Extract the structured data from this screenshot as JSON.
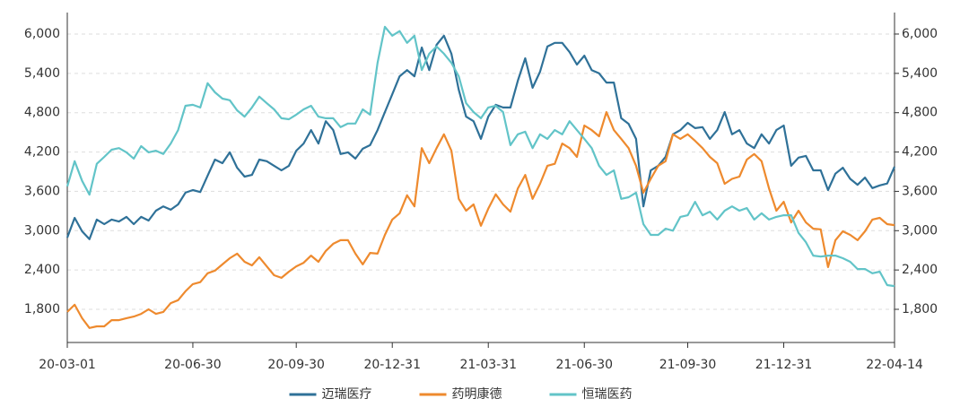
{
  "chart_data": {
    "type": "line",
    "categories": [
      "20-03-01",
      null,
      null,
      null,
      null,
      null,
      null,
      null,
      null,
      null,
      null,
      null,
      null,
      null,
      null,
      null,
      null,
      "20-06-30",
      null,
      null,
      null,
      null,
      null,
      null,
      null,
      null,
      null,
      null,
      null,
      null,
      null,
      "20-09-30",
      null,
      null,
      null,
      null,
      null,
      null,
      null,
      null,
      null,
      null,
      null,
      null,
      "20-12-31",
      null,
      null,
      null,
      null,
      null,
      null,
      null,
      null,
      null,
      null,
      null,
      null,
      "21-03-31",
      null,
      null,
      null,
      null,
      null,
      null,
      null,
      null,
      null,
      null,
      null,
      null,
      "21-06-30",
      null,
      null,
      null,
      null,
      null,
      null,
      null,
      null,
      null,
      null,
      null,
      null,
      null,
      "21-09-30",
      null,
      null,
      null,
      null,
      null,
      null,
      null,
      null,
      null,
      null,
      null,
      null,
      "21-12-31",
      null,
      null,
      null,
      null,
      null,
      null,
      null,
      null,
      null,
      null,
      null,
      null,
      null,
      null,
      "22-04-14"
    ],
    "series": [
      {
        "name": "迈瑞医疗",
        "color": "#2f7198",
        "values": [
          2895,
          3195,
          2990,
          2870,
          3170,
          3100,
          3170,
          3140,
          3210,
          3100,
          3210,
          3155,
          3305,
          3370,
          3320,
          3400,
          3580,
          3620,
          3590,
          3840,
          4085,
          4030,
          4195,
          3960,
          3825,
          3850,
          4085,
          4060,
          3990,
          3920,
          3990,
          4220,
          4330,
          4535,
          4330,
          4670,
          4535,
          4170,
          4195,
          4100,
          4250,
          4305,
          4535,
          4810,
          5080,
          5355,
          5450,
          5355,
          5795,
          5450,
          5835,
          5975,
          5700,
          5150,
          4740,
          4670,
          4400,
          4740,
          4920,
          4880,
          4880,
          5290,
          5630,
          5180,
          5425,
          5810,
          5865,
          5865,
          5725,
          5535,
          5670,
          5450,
          5400,
          5260,
          5260,
          4715,
          4630,
          4400,
          3370,
          3920,
          3990,
          4125,
          4470,
          4535,
          4645,
          4565,
          4580,
          4400,
          4535,
          4810,
          4470,
          4535,
          4330,
          4260,
          4470,
          4330,
          4535,
          4605,
          3990,
          4115,
          4140,
          3920,
          3920,
          3620,
          3870,
          3960,
          3790,
          3700,
          3810,
          3650,
          3690,
          3720,
          3975
        ]
      },
      {
        "name": "药明康德",
        "color": "#ee8a2e",
        "values": [
          1760,
          1870,
          1665,
          1515,
          1540,
          1540,
          1635,
          1635,
          1665,
          1690,
          1730,
          1800,
          1730,
          1760,
          1895,
          1940,
          2075,
          2185,
          2215,
          2350,
          2390,
          2485,
          2580,
          2650,
          2525,
          2470,
          2595,
          2455,
          2320,
          2280,
          2375,
          2455,
          2510,
          2620,
          2525,
          2690,
          2800,
          2855,
          2855,
          2650,
          2485,
          2660,
          2650,
          2935,
          3170,
          3265,
          3540,
          3370,
          4260,
          4030,
          4260,
          4470,
          4220,
          3485,
          3305,
          3400,
          3075,
          3335,
          3555,
          3400,
          3290,
          3645,
          3850,
          3485,
          3715,
          3990,
          4020,
          4330,
          4260,
          4125,
          4605,
          4535,
          4440,
          4810,
          4535,
          4400,
          4260,
          3990,
          3580,
          3790,
          3990,
          4060,
          4470,
          4400,
          4470,
          4370,
          4260,
          4125,
          4030,
          3715,
          3790,
          3825,
          4085,
          4170,
          4060,
          3645,
          3305,
          3440,
          3125,
          3305,
          3125,
          3030,
          3020,
          2445,
          2855,
          2990,
          2935,
          2855,
          2990,
          3170,
          3195,
          3100,
          3085
        ]
      },
      {
        "name": "恒瑞医药",
        "color": "#62c4c8",
        "values": [
          3675,
          4060,
          3760,
          3550,
          4020,
          4125,
          4235,
          4260,
          4195,
          4100,
          4290,
          4195,
          4220,
          4170,
          4330,
          4535,
          4905,
          4920,
          4880,
          5250,
          5110,
          5015,
          4990,
          4835,
          4740,
          4880,
          5045,
          4945,
          4850,
          4715,
          4700,
          4770,
          4850,
          4905,
          4740,
          4715,
          4715,
          4580,
          4635,
          4635,
          4850,
          4770,
          5560,
          6110,
          5975,
          6045,
          5865,
          5975,
          5450,
          5700,
          5810,
          5700,
          5560,
          5355,
          4945,
          4810,
          4715,
          4880,
          4905,
          4810,
          4305,
          4470,
          4510,
          4260,
          4470,
          4400,
          4535,
          4470,
          4670,
          4535,
          4400,
          4260,
          3990,
          3850,
          3920,
          3485,
          3510,
          3580,
          3100,
          2935,
          2935,
          3030,
          3000,
          3210,
          3235,
          3440,
          3235,
          3290,
          3170,
          3305,
          3370,
          3305,
          3345,
          3170,
          3265,
          3170,
          3210,
          3235,
          3235,
          2965,
          2825,
          2620,
          2605,
          2620,
          2620,
          2580,
          2525,
          2415,
          2415,
          2350,
          2375,
          2170,
          2155
        ]
      }
    ],
    "ylim": [
      1294,
      6328
    ],
    "yticks": [
      {
        "value": 1800,
        "label": "1,800"
      },
      {
        "value": 2400,
        "label": "2,400"
      },
      {
        "value": 3000,
        "label": "3,000"
      },
      {
        "value": 3600,
        "label": "3,600"
      },
      {
        "value": 4200,
        "label": "4,200"
      },
      {
        "value": 4800,
        "label": "4,800"
      },
      {
        "value": 5400,
        "label": "5,400"
      },
      {
        "value": 6000,
        "label": "6,000"
      }
    ],
    "y2lim": [
      1294,
      6328
    ],
    "y2ticks": [
      {
        "value": 1800,
        "label": "1,800"
      },
      {
        "value": 2400,
        "label": "2,400"
      },
      {
        "value": 3000,
        "label": "3,000"
      },
      {
        "value": 3600,
        "label": "3,600"
      },
      {
        "value": 4200,
        "label": "4,200"
      },
      {
        "value": 4800,
        "label": "4,800"
      },
      {
        "value": 5400,
        "label": "5,400"
      },
      {
        "value": 6000,
        "label": "6,000"
      }
    ],
    "grid": true,
    "legend": "bottom"
  }
}
